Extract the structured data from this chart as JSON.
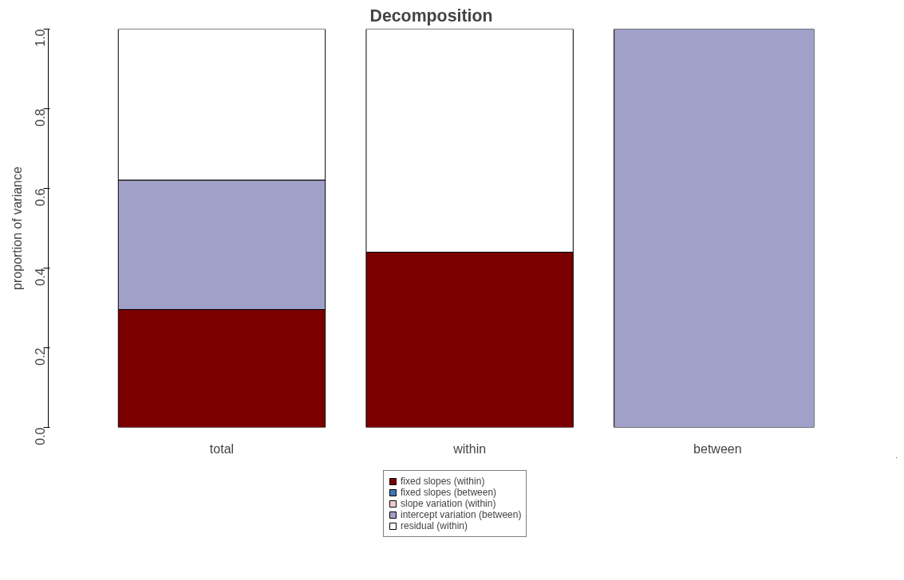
{
  "chart_data": {
    "type": "bar",
    "title": "Decomposition",
    "ylabel": "proportion of variance",
    "categories": [
      "total",
      "within",
      "between"
    ],
    "stacked": true,
    "ylim": [
      0,
      1
    ],
    "yticks": [
      {
        "value": 0,
        "label": "0.0"
      },
      {
        "value": 0.2,
        "label": "0.2"
      },
      {
        "value": 0.4,
        "label": "0.4"
      },
      {
        "value": 0.6,
        "label": "0.6"
      },
      {
        "value": 0.8,
        "label": "0.8"
      },
      {
        "value": 1,
        "label": "1.0"
      }
    ],
    "series": [
      {
        "name": "fixed slopes (within)",
        "color": "#7a0000",
        "values": [
          0.296,
          0.44,
          0
        ]
      },
      {
        "name": "fixed slopes (between)",
        "color": "#3b78b8",
        "values": [
          0,
          0,
          0
        ]
      },
      {
        "name": "slope variation (within)",
        "color": "#f2cccc",
        "values": [
          0,
          0,
          0
        ]
      },
      {
        "name": "intercept variation (between)",
        "color": "#a0a0c8",
        "values": [
          0.325,
          0,
          1.0
        ]
      },
      {
        "name": "residual (within)",
        "color": "#ffffff",
        "values": [
          0.379,
          0.56,
          0
        ]
      }
    ],
    "grid": false,
    "legend": "bottom"
  }
}
